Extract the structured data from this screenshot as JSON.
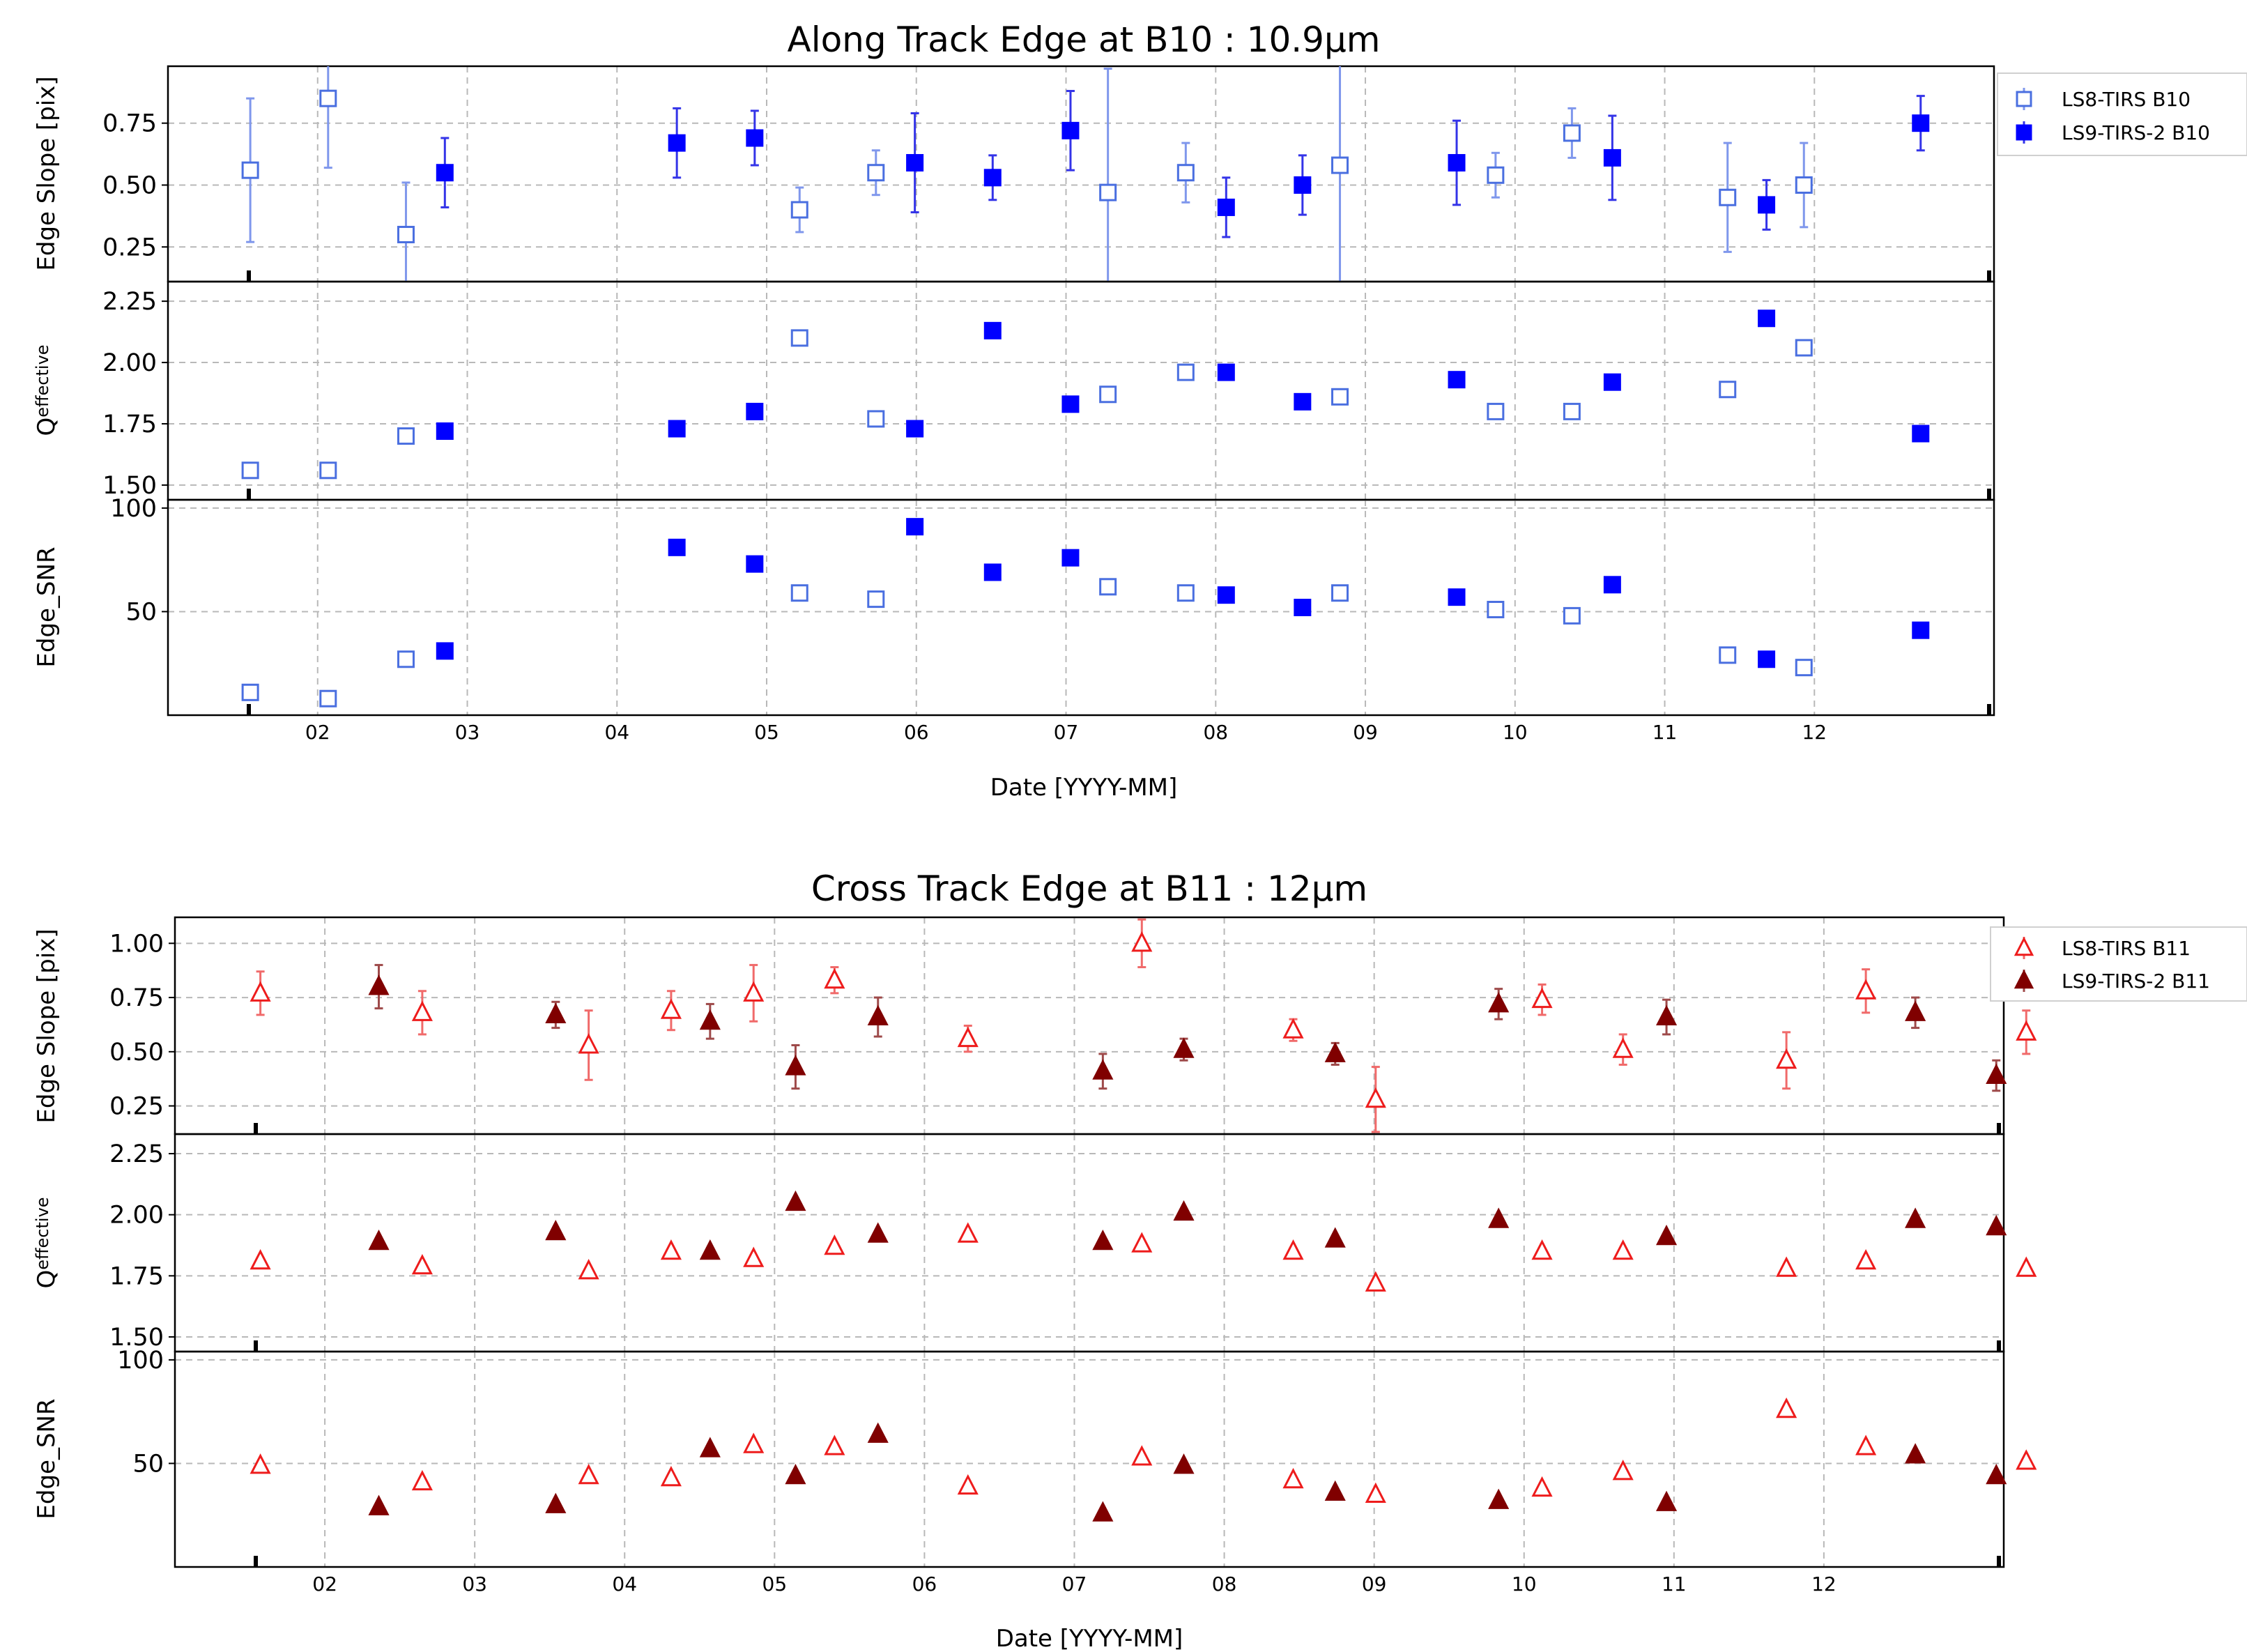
{
  "chart_data": [
    {
      "type": "scatter",
      "title": "Along Track Edge at B10 :  10.9µm",
      "xlabel": "Date [YYYY-MM]",
      "x_ticks": [
        "02",
        "03",
        "04",
        "05",
        "06",
        "07",
        "08",
        "09",
        "10",
        "11",
        "12"
      ],
      "x_range": [
        0.0,
        12.2
      ],
      "legend_position": "top-right outside",
      "colors": {
        "open": "#4a6fe0",
        "filled": "#0000ff",
        "err_open": "#7f97ec",
        "err_filled": "#3434e8"
      },
      "marker": "square",
      "panels": [
        {
          "ylabel": "Edge Slope [pix]",
          "ylabel_sub": "",
          "yticks": [
            0.25,
            0.5,
            0.75
          ],
          "yrange": [
            0.11,
            0.98
          ]
        },
        {
          "ylabel": "Q",
          "ylabel_sub": "effective",
          "yticks": [
            1.5,
            1.75,
            2.0,
            2.25
          ],
          "yrange": [
            1.44,
            2.33
          ]
        },
        {
          "ylabel": "Edge_SNR",
          "ylabel_sub": "",
          "yticks": [
            50,
            100
          ],
          "yrange": [
            0,
            104
          ]
        }
      ],
      "series": [
        {
          "name": "LS8-TIRS B10",
          "filled": false,
          "points": [
            {
              "x": 0.55,
              "slope": 0.56,
              "err_lo": 0.29,
              "err_hi": 0.29,
              "q": 1.56,
              "snr": 11
            },
            {
              "x": 1.07,
              "slope": 0.85,
              "err_lo": 0.28,
              "err_hi": 0.15,
              "q": 1.56,
              "snr": 8
            },
            {
              "x": 1.59,
              "slope": 0.3,
              "err_lo": 0.21,
              "err_hi": 0.21,
              "q": 1.7,
              "snr": 27
            },
            {
              "x": 4.22,
              "slope": 0.4,
              "err_lo": 0.09,
              "err_hi": 0.09,
              "q": 2.1,
              "snr": 59
            },
            {
              "x": 4.73,
              "slope": 0.55,
              "err_lo": 0.09,
              "err_hi": 0.09,
              "q": 1.77,
              "snr": 56
            },
            {
              "x": 6.28,
              "slope": 0.47,
              "err_lo": 0.5,
              "err_hi": 0.5,
              "q": 1.87,
              "snr": 62
            },
            {
              "x": 6.8,
              "slope": 0.55,
              "err_lo": 0.12,
              "err_hi": 0.12,
              "q": 1.96,
              "snr": 59
            },
            {
              "x": 7.83,
              "slope": 0.58,
              "err_lo": 0.5,
              "err_hi": 0.5,
              "q": 1.86,
              "snr": 59
            },
            {
              "x": 8.87,
              "slope": 0.54,
              "err_lo": 0.09,
              "err_hi": 0.09,
              "q": 1.8,
              "snr": 51
            },
            {
              "x": 9.38,
              "slope": 0.71,
              "err_lo": 0.1,
              "err_hi": 0.1,
              "q": 1.8,
              "snr": 48
            },
            {
              "x": 10.42,
              "slope": 0.45,
              "err_lo": 0.22,
              "err_hi": 0.22,
              "q": 1.89,
              "snr": 29
            },
            {
              "x": 10.93,
              "slope": 0.5,
              "err_lo": 0.17,
              "err_hi": 0.17,
              "q": 2.06,
              "snr": 23
            }
          ]
        },
        {
          "name": "LS9-TIRS-2 B10",
          "filled": true,
          "points": [
            {
              "x": 1.85,
              "slope": 0.55,
              "err_lo": 0.14,
              "err_hi": 0.14,
              "q": 1.72,
              "snr": 31
            },
            {
              "x": 3.4,
              "slope": 0.67,
              "err_lo": 0.14,
              "err_hi": 0.14,
              "q": 1.73,
              "snr": 81
            },
            {
              "x": 3.92,
              "slope": 0.69,
              "err_lo": 0.11,
              "err_hi": 0.11,
              "q": 1.8,
              "snr": 73
            },
            {
              "x": 4.99,
              "slope": 0.59,
              "err_lo": 0.2,
              "err_hi": 0.2,
              "q": 1.73,
              "snr": 91
            },
            {
              "x": 5.51,
              "slope": 0.53,
              "err_lo": 0.09,
              "err_hi": 0.09,
              "q": 2.13,
              "snr": 69
            },
            {
              "x": 6.03,
              "slope": 0.72,
              "err_lo": 0.16,
              "err_hi": 0.16,
              "q": 1.83,
              "snr": 76
            },
            {
              "x": 7.07,
              "slope": 0.41,
              "err_lo": 0.12,
              "err_hi": 0.12,
              "q": 1.96,
              "snr": 58
            },
            {
              "x": 7.58,
              "slope": 0.5,
              "err_lo": 0.12,
              "err_hi": 0.12,
              "q": 1.84,
              "snr": 52
            },
            {
              "x": 8.61,
              "slope": 0.59,
              "err_lo": 0.17,
              "err_hi": 0.17,
              "q": 1.93,
              "snr": 57
            },
            {
              "x": 9.65,
              "slope": 0.61,
              "err_lo": 0.17,
              "err_hi": 0.17,
              "q": 1.92,
              "snr": 63
            },
            {
              "x": 10.68,
              "slope": 0.42,
              "err_lo": 0.1,
              "err_hi": 0.1,
              "q": 2.18,
              "snr": 27
            },
            {
              "x": 11.71,
              "slope": 0.75,
              "err_lo": 0.11,
              "err_hi": 0.11,
              "q": 1.71,
              "snr": 41
            }
          ]
        }
      ]
    },
    {
      "type": "scatter",
      "title": "Cross Track Edge at B11 :  12µm",
      "xlabel": "Date [YYYY-MM]",
      "x_ticks": [
        "02",
        "03",
        "04",
        "05",
        "06",
        "07",
        "08",
        "09",
        "10",
        "11",
        "12"
      ],
      "x_range": [
        0.0,
        12.2
      ],
      "legend_position": "top-right outside",
      "colors": {
        "open": "#ee1c1c",
        "filled": "#800000",
        "err_open": "#f06a6a",
        "err_filled": "#9e4a4a"
      },
      "marker": "triangle",
      "panels": [
        {
          "ylabel": "Edge Slope [pix]",
          "ylabel_sub": "",
          "yticks": [
            0.25,
            0.5,
            0.75,
            1.0
          ],
          "yrange": [
            0.12,
            1.12
          ]
        },
        {
          "ylabel": "Q",
          "ylabel_sub": "effective",
          "yticks": [
            1.5,
            1.75,
            2.0,
            2.25
          ],
          "yrange": [
            1.44,
            2.33
          ]
        },
        {
          "ylabel": "Edge_SNR",
          "ylabel_sub": "",
          "yticks": [
            50,
            100
          ],
          "yrange": [
            0,
            104
          ]
        }
      ],
      "series": [
        {
          "name": "LS8-TIRS B11",
          "filled": false,
          "points": [
            {
              "x": 0.57,
              "slope": 0.77,
              "err_lo": 0.1,
              "err_hi": 0.1,
              "q": 1.81,
              "snr": 49
            },
            {
              "x": 1.65,
              "slope": 0.68,
              "err_lo": 0.1,
              "err_hi": 0.1,
              "q": 1.79,
              "snr": 41
            },
            {
              "x": 2.76,
              "slope": 0.53,
              "err_lo": 0.16,
              "err_hi": 0.16,
              "q": 1.77,
              "snr": 44
            },
            {
              "x": 3.31,
              "slope": 0.69,
              "err_lo": 0.09,
              "err_hi": 0.09,
              "q": 1.85,
              "snr": 43
            },
            {
              "x": 3.86,
              "slope": 0.77,
              "err_lo": 0.13,
              "err_hi": 0.13,
              "q": 1.82,
              "snr": 59
            },
            {
              "x": 4.4,
              "slope": 0.83,
              "err_lo": 0.06,
              "err_hi": 0.06,
              "q": 1.87,
              "snr": 58
            },
            {
              "x": 5.29,
              "slope": 0.56,
              "err_lo": 0.06,
              "err_hi": 0.06,
              "q": 1.92,
              "snr": 39
            },
            {
              "x": 6.45,
              "slope": 1.0,
              "err_lo": 0.11,
              "err_hi": 0.11,
              "q": 1.88,
              "snr": 53
            },
            {
              "x": 7.46,
              "slope": 0.6,
              "err_lo": 0.05,
              "err_hi": 0.05,
              "q": 1.85,
              "snr": 42
            },
            {
              "x": 8.01,
              "slope": 0.28,
              "err_lo": 0.15,
              "err_hi": 0.15,
              "q": 1.72,
              "snr": 35
            },
            {
              "x": 9.12,
              "slope": 0.74,
              "err_lo": 0.07,
              "err_hi": 0.07,
              "q": 1.85,
              "snr": 38
            },
            {
              "x": 9.66,
              "slope": 0.51,
              "err_lo": 0.07,
              "err_hi": 0.07,
              "q": 1.85,
              "snr": 46
            },
            {
              "x": 10.75,
              "slope": 0.46,
              "err_lo": 0.13,
              "err_hi": 0.13,
              "q": 1.78,
              "snr": 76
            },
            {
              "x": 11.28,
              "slope": 0.78,
              "err_lo": 0.1,
              "err_hi": 0.1,
              "q": 1.81,
              "snr": 58
            },
            {
              "x": 12.35,
              "slope": 0.59,
              "err_lo": 0.1,
              "err_hi": 0.1,
              "q": 1.78,
              "snr": 51
            }
          ]
        },
        {
          "name": "LS9-TIRS-2 B11",
          "filled": true,
          "points": [
            {
              "x": 1.36,
              "slope": 0.8,
              "err_lo": 0.1,
              "err_hi": 0.1,
              "q": 1.89,
              "snr": 29
            },
            {
              "x": 2.54,
              "slope": 0.67,
              "err_lo": 0.06,
              "err_hi": 0.06,
              "q": 1.93,
              "snr": 30
            },
            {
              "x": 3.57,
              "slope": 0.64,
              "err_lo": 0.08,
              "err_hi": 0.08,
              "q": 1.85,
              "snr": 57
            },
            {
              "x": 4.14,
              "slope": 0.43,
              "err_lo": 0.1,
              "err_hi": 0.1,
              "q": 2.05,
              "snr": 44
            },
            {
              "x": 4.69,
              "slope": 0.66,
              "err_lo": 0.09,
              "err_hi": 0.09,
              "q": 1.92,
              "snr": 64
            },
            {
              "x": 6.19,
              "slope": 0.41,
              "err_lo": 0.08,
              "err_hi": 0.08,
              "q": 1.89,
              "snr": 26
            },
            {
              "x": 6.73,
              "slope": 0.51,
              "err_lo": 0.05,
              "err_hi": 0.05,
              "q": 2.01,
              "snr": 49
            },
            {
              "x": 7.74,
              "slope": 0.49,
              "err_lo": 0.05,
              "err_hi": 0.05,
              "q": 1.9,
              "snr": 36
            },
            {
              "x": 8.83,
              "slope": 0.72,
              "err_lo": 0.07,
              "err_hi": 0.07,
              "q": 1.98,
              "snr": 32
            },
            {
              "x": 9.95,
              "slope": 0.66,
              "err_lo": 0.08,
              "err_hi": 0.08,
              "q": 1.91,
              "snr": 31
            },
            {
              "x": 11.61,
              "slope": 0.68,
              "err_lo": 0.07,
              "err_hi": 0.07,
              "q": 1.98,
              "snr": 54
            },
            {
              "x": 12.15,
              "slope": 0.39,
              "err_lo": 0.07,
              "err_hi": 0.07,
              "q": 1.95,
              "snr": 44
            }
          ]
        }
      ]
    }
  ]
}
